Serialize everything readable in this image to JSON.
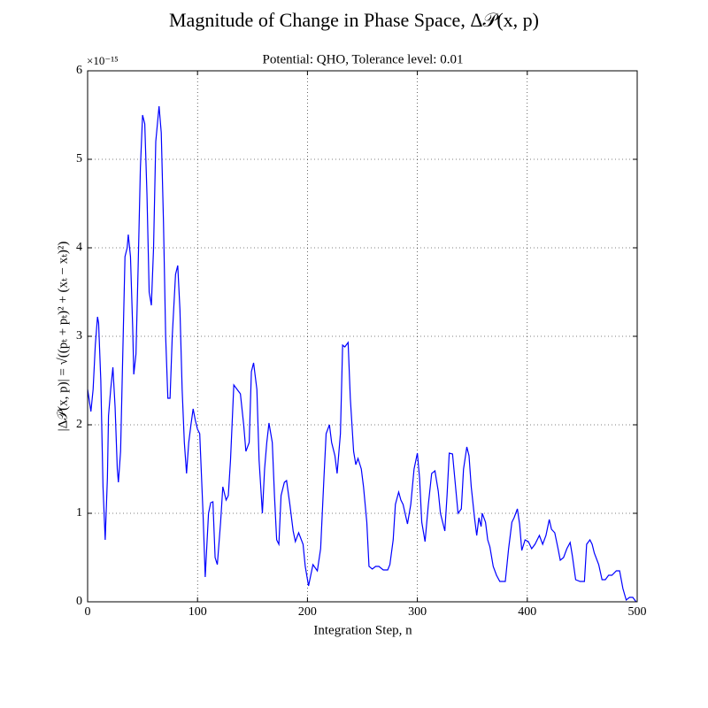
{
  "chart_data": {
    "type": "line",
    "title": "Magnitude of Change in Phase Space, Δ𝒫(x, p)",
    "subtitle": "Potential: QHO, Tolerance level: 0.01",
    "x_label": "Integration Step, n",
    "y_label": "|Δ𝒫(x, p)| = √((pₜ + pₜ)² + (xₜ − xₜ)²)",
    "y_offset_label": "×10⁻¹⁵",
    "color": "#0000ff",
    "grid": true,
    "xlim": [
      0,
      500
    ],
    "xticks": [
      0,
      100,
      200,
      300,
      400,
      500
    ],
    "ylim": [
      0,
      6
    ],
    "yticks": [
      0,
      1,
      2,
      3,
      4,
      5,
      6
    ],
    "x": [
      0,
      3,
      5,
      7,
      9,
      10,
      12,
      14,
      16,
      18,
      19,
      21,
      23,
      25,
      27,
      28,
      30,
      32,
      34,
      36,
      37,
      39,
      41,
      42,
      44,
      46,
      48,
      50,
      52,
      54,
      56,
      58,
      60,
      62,
      65,
      67,
      69,
      71,
      73,
      75,
      77,
      80,
      82,
      84,
      86,
      88,
      90,
      92,
      94,
      96,
      98,
      100,
      102,
      105,
      107,
      110,
      112,
      114,
      116,
      118,
      121,
      123,
      126,
      128,
      130,
      133,
      136,
      139,
      142,
      144,
      147,
      149,
      151,
      154,
      156,
      159,
      161,
      163,
      165,
      168,
      170,
      172,
      174,
      176,
      179,
      181,
      184,
      187,
      189,
      192,
      196,
      198,
      201,
      203,
      205,
      209,
      212,
      215,
      217,
      220,
      222,
      225,
      227,
      230,
      232,
      234,
      237,
      239,
      242,
      244,
      246,
      249,
      251,
      254,
      256,
      259,
      262,
      265,
      269,
      273,
      275,
      278,
      280,
      283,
      285,
      287,
      291,
      294,
      297,
      300,
      302,
      304,
      307,
      310,
      313,
      316,
      319,
      321,
      325,
      327,
      329,
      332,
      334,
      337,
      340,
      342,
      345,
      347,
      349,
      352,
      354,
      356,
      358,
      359,
      362,
      364,
      366,
      369,
      372,
      375,
      380,
      383,
      386,
      388,
      391,
      393,
      395,
      398,
      401,
      404,
      407,
      411,
      414,
      417,
      420,
      422,
      425,
      428,
      430,
      433,
      436,
      439,
      441,
      444,
      448,
      452,
      454,
      457,
      459,
      461,
      465,
      468,
      471,
      474,
      477,
      481,
      484,
      487,
      490,
      493,
      496,
      499
    ],
    "values": [
      2.4,
      2.15,
      2.4,
      2.9,
      3.22,
      3.15,
      2.5,
      1.3,
      0.7,
      1.4,
      2.1,
      2.4,
      2.65,
      2.2,
      1.5,
      1.35,
      1.7,
      2.8,
      3.9,
      4.0,
      4.15,
      3.9,
      3.1,
      2.57,
      2.8,
      3.8,
      4.9,
      5.5,
      5.4,
      4.6,
      3.5,
      3.35,
      4.0,
      5.2,
      5.6,
      5.3,
      4.3,
      3.0,
      2.3,
      2.3,
      3.0,
      3.7,
      3.8,
      3.3,
      2.4,
      1.8,
      1.45,
      1.8,
      2.0,
      2.18,
      2.05,
      1.95,
      1.9,
      1.0,
      0.28,
      1.0,
      1.12,
      1.13,
      0.5,
      0.42,
      0.9,
      1.3,
      1.15,
      1.2,
      1.6,
      2.45,
      2.4,
      2.35,
      2.0,
      1.7,
      1.8,
      2.6,
      2.7,
      2.4,
      1.6,
      1.0,
      1.5,
      1.8,
      2.02,
      1.8,
      1.2,
      0.7,
      0.65,
      1.2,
      1.35,
      1.37,
      1.1,
      0.8,
      0.68,
      0.78,
      0.65,
      0.4,
      0.18,
      0.3,
      0.42,
      0.35,
      0.6,
      1.4,
      1.9,
      2.0,
      1.8,
      1.65,
      1.45,
      1.9,
      2.9,
      2.88,
      2.93,
      2.3,
      1.7,
      1.55,
      1.62,
      1.5,
      1.3,
      0.9,
      0.4,
      0.37,
      0.4,
      0.4,
      0.36,
      0.36,
      0.42,
      0.7,
      1.1,
      1.24,
      1.15,
      1.1,
      0.88,
      1.1,
      1.5,
      1.68,
      1.4,
      0.9,
      0.68,
      1.1,
      1.45,
      1.48,
      1.25,
      1.0,
      0.8,
      1.2,
      1.68,
      1.67,
      1.4,
      1.0,
      1.05,
      1.5,
      1.75,
      1.65,
      1.3,
      0.95,
      0.75,
      0.95,
      0.85,
      1.0,
      0.9,
      0.7,
      0.62,
      0.4,
      0.3,
      0.23,
      0.23,
      0.6,
      0.9,
      0.95,
      1.05,
      0.88,
      0.58,
      0.7,
      0.68,
      0.6,
      0.65,
      0.75,
      0.65,
      0.75,
      0.93,
      0.82,
      0.78,
      0.6,
      0.47,
      0.5,
      0.6,
      0.67,
      0.52,
      0.25,
      0.23,
      0.23,
      0.65,
      0.7,
      0.65,
      0.55,
      0.42,
      0.25,
      0.25,
      0.3,
      0.3,
      0.35,
      0.35,
      0.15,
      0.02,
      0.05,
      0.05,
      0.0
    ]
  }
}
